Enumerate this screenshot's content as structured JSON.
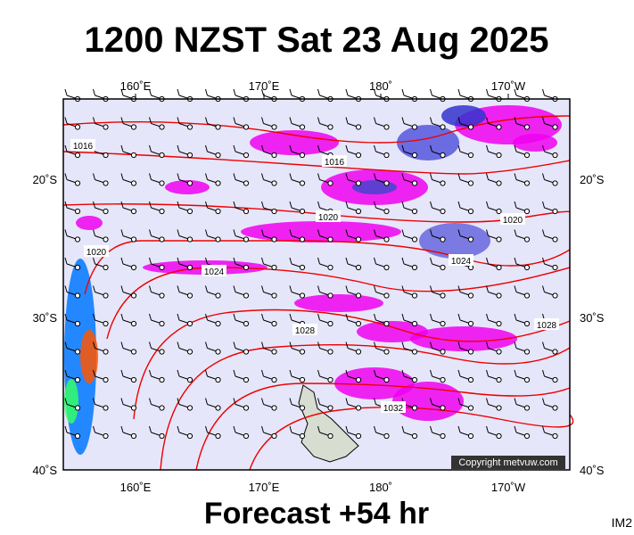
{
  "title": "1200 NZST Sat 23 Aug 2025",
  "map": {
    "top_lon_labels": [
      "160˚E",
      "170˚E",
      "180˚",
      "170˚W"
    ],
    "bottom_lon_labels": [
      "160˚E",
      "170˚E",
      "180˚",
      "170˚W"
    ],
    "left_lat_labels": [
      "20˚S",
      "30˚S",
      "40˚S"
    ],
    "right_lat_labels": [
      "20˚S",
      "30˚S",
      "40˚S"
    ],
    "isobar_labels": [
      "1016",
      "1016",
      "1020",
      "1020",
      "1020",
      "1024",
      "1024",
      "1028",
      "1028",
      "1032"
    ],
    "copyright": "Copyright metvuw.com"
  },
  "footer": "Forecast +54 hr",
  "corner_label": "IM2"
}
